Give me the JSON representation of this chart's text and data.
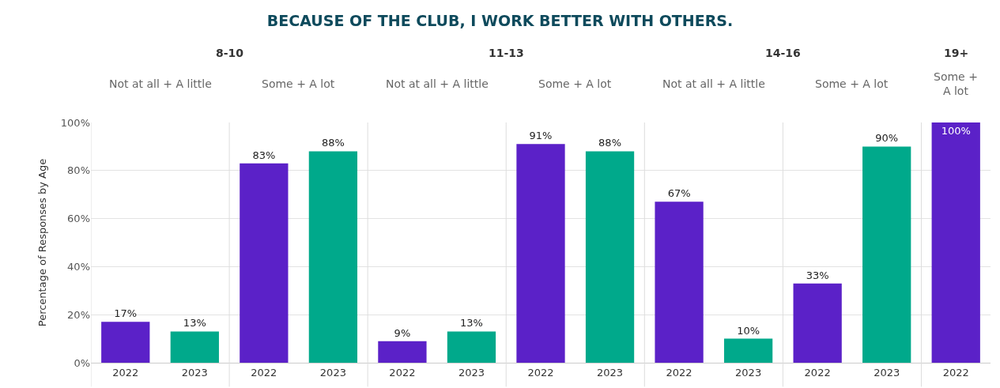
{
  "chart_data": {
    "type": "bar",
    "title": "BECAUSE OF THE CLUB, I WORK BETTER WITH OTHERS.",
    "ylabel": "Percentage of Responses by Age",
    "categories": [
      "2022",
      "2023",
      "2022",
      "2023",
      "2022",
      "2023",
      "2022",
      "2023",
      "2022",
      "2023",
      "2022",
      "2023",
      "2022"
    ],
    "values": [
      17,
      13,
      83,
      88,
      9,
      13,
      91,
      88,
      67,
      10,
      33,
      90,
      100
    ],
    "colors": [
      "#5b21c8",
      "#00a98b",
      "#5b21c8",
      "#00a98b",
      "#5b21c8",
      "#00a98b",
      "#5b21c8",
      "#00a98b",
      "#5b21c8",
      "#00a98b",
      "#5b21c8",
      "#00a98b",
      "#5b21c8"
    ],
    "value_labels": [
      "17%",
      "13%",
      "83%",
      "88%",
      "9%",
      "13%",
      "91%",
      "88%",
      "67%",
      "10%",
      "33%",
      "90%",
      "100%"
    ],
    "ylim": [
      0,
      100
    ],
    "yticks": [
      {
        "value": 0,
        "label": "0%"
      },
      {
        "value": 20,
        "label": "20%"
      },
      {
        "value": 40,
        "label": "40%"
      },
      {
        "value": 60,
        "label": "60%"
      },
      {
        "value": 80,
        "label": "80%"
      },
      {
        "value": 100,
        "label": "100%"
      }
    ],
    "grid": "y",
    "annotations": [
      "8-10",
      "Not at all + A little",
      "Some + A lot",
      "11-13",
      "Not at all + A little",
      "Some + A lot",
      "14-16",
      "Not at all + A little",
      "Some + A lot",
      "19+",
      "Some +\nA lot"
    ]
  }
}
